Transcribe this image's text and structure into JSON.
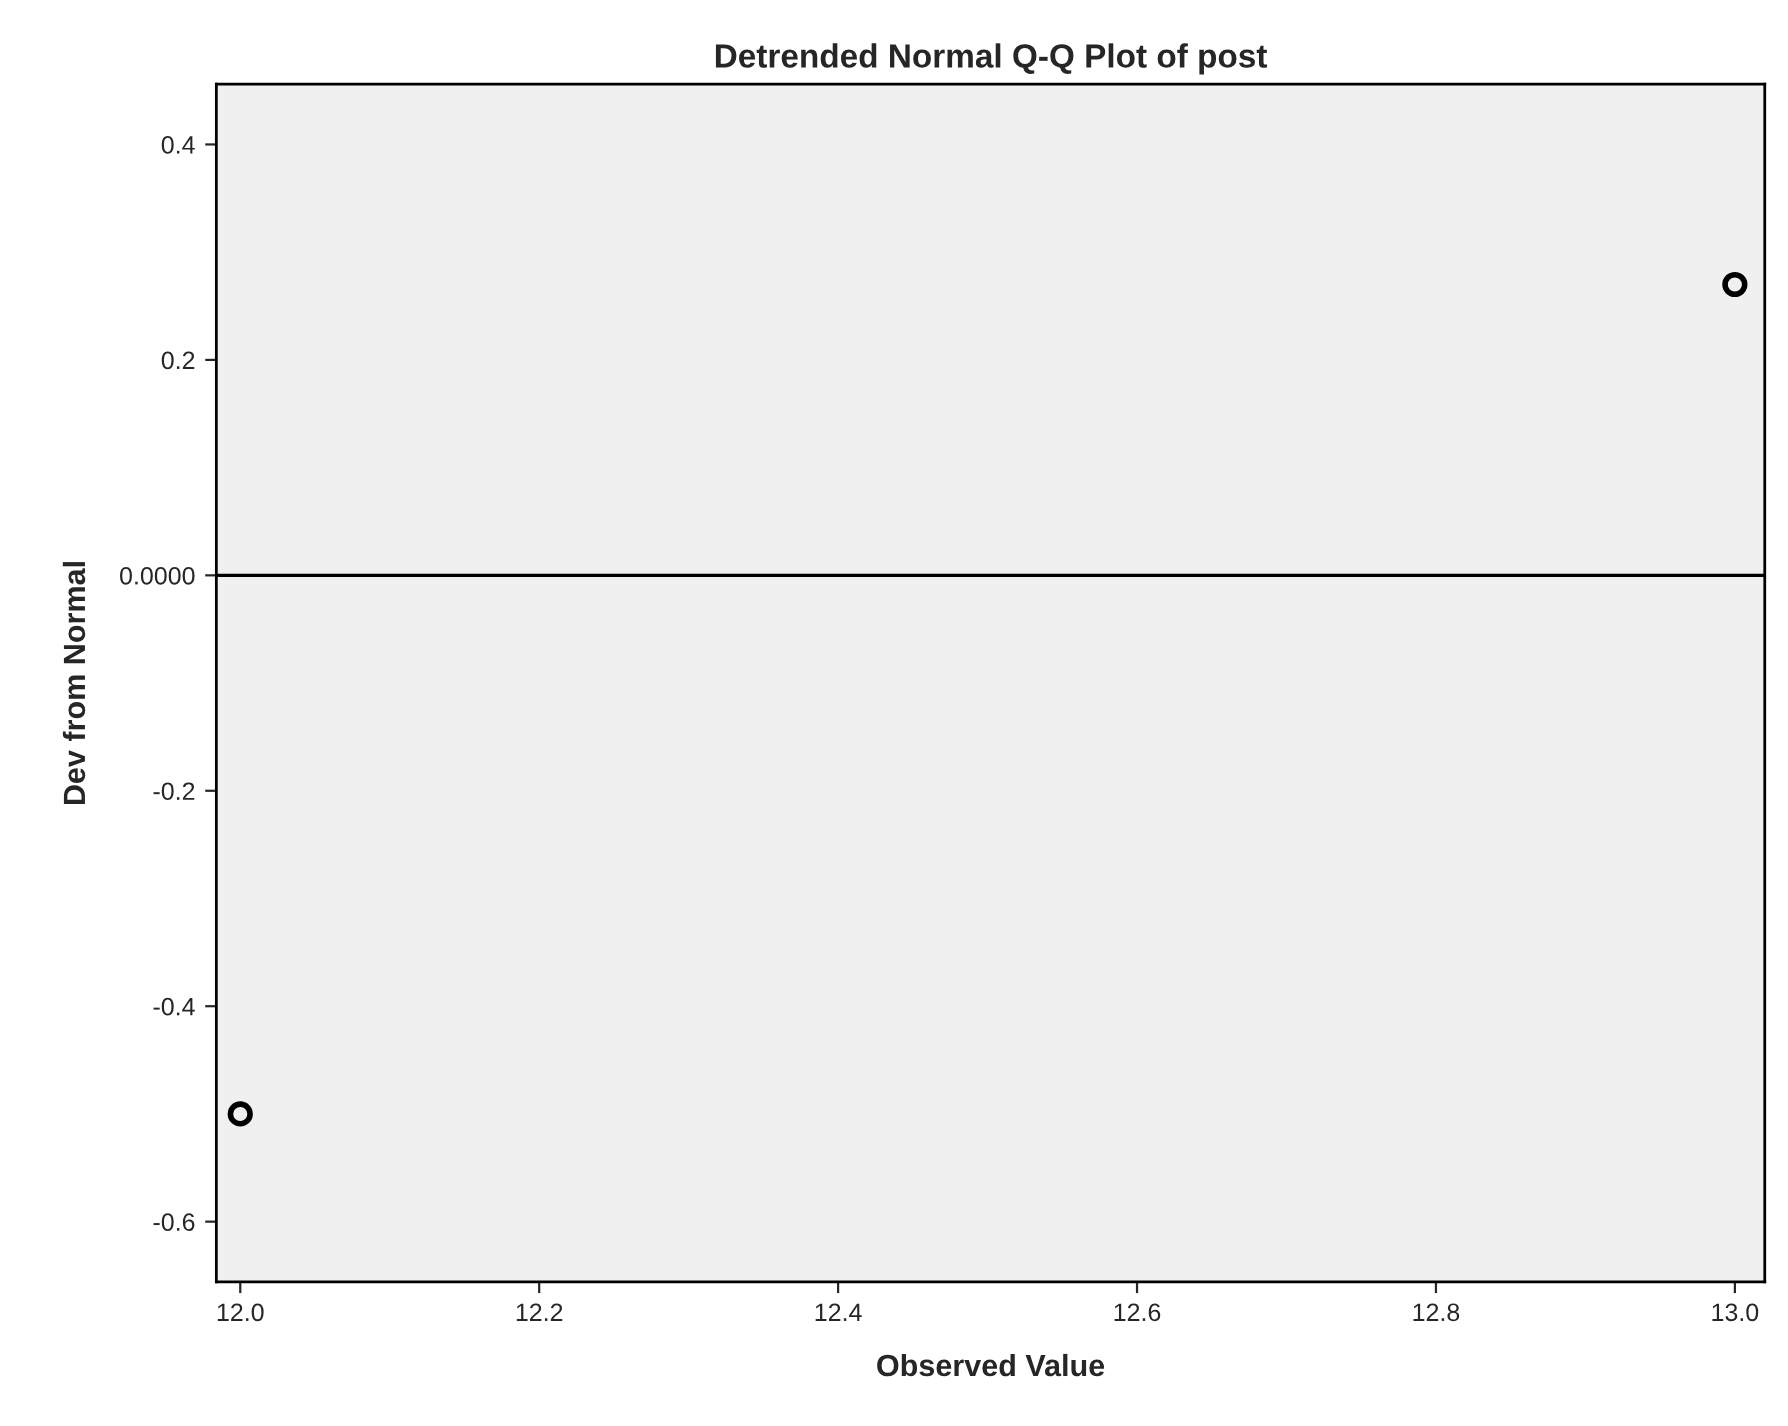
{
  "chart_data": {
    "type": "scatter",
    "title": "Detrended Normal Q-Q Plot of post",
    "xlabel": "Observed Value",
    "ylabel": "Dev from Normal",
    "x": [
      12.0,
      13.0
    ],
    "series": [
      {
        "color": "#000000",
        "values": [
          -0.5,
          0.27
        ]
      }
    ],
    "xlim": [
      11.984,
      13.02
    ],
    "xticks": [
      {
        "value": 12.0,
        "label": "12.0"
      },
      12.2,
      12.4,
      12.6,
      12.8,
      {
        "value": 13.0,
        "label": "13.0"
      }
    ],
    "ylim": [
      -0.656,
      0.456
    ],
    "yticks": [
      -0.6,
      -0.4,
      -0.2,
      {
        "value": 0,
        "label": "0.0000"
      },
      0.2,
      0.4
    ],
    "ref_lines": [
      {
        "axis": "y",
        "value": 0,
        "color": "#000000"
      }
    ],
    "marker": "circle",
    "grid": false,
    "legend": false
  }
}
